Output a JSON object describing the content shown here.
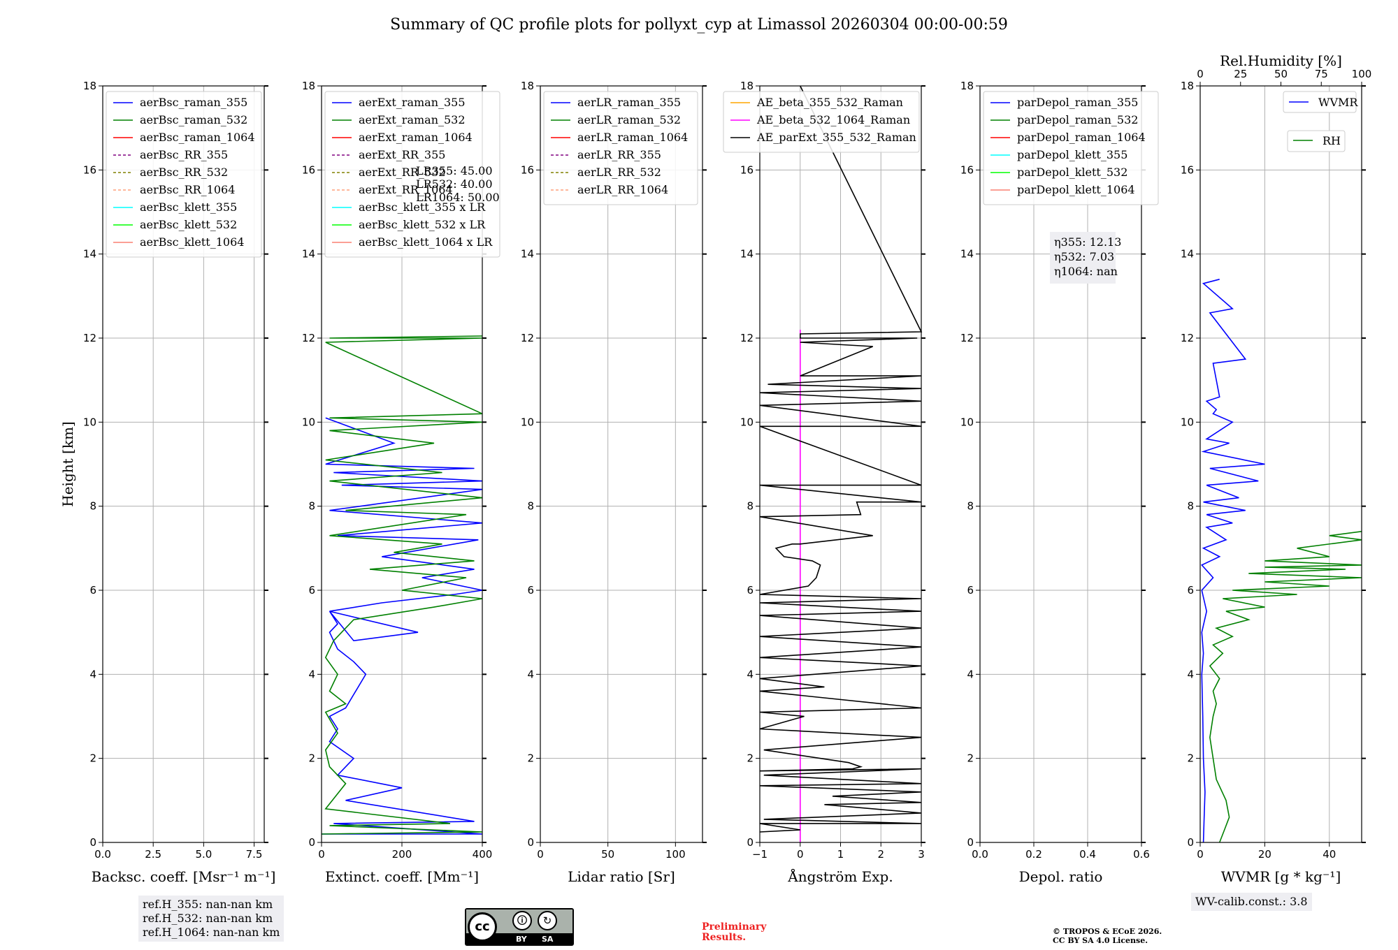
{
  "title": "Summary of QC profile plots for pollyxt_cyp at Limassol 20260304 00:00-00:59",
  "colors": {
    "blue": "#0000ff",
    "green": "#008000",
    "red": "#ff0000",
    "purple": "#800080",
    "olive": "#808000",
    "lightsalmon": "#ffa07a",
    "cyan": "#00ffff",
    "lime": "#00ff00",
    "salmon": "#fa8072",
    "orange": "#ffa500",
    "magenta": "#ff00ff",
    "black": "#000000"
  },
  "chart_data": [
    {
      "type": "line",
      "xlabel": "Backsc. coeff. [Msr⁻¹ m⁻¹]",
      "ylabel": "Height [km]",
      "xlim": [
        0,
        8
      ],
      "ylim": [
        0,
        18
      ],
      "xticks": [
        "0.0",
        "2.5",
        "5.0",
        "7.5"
      ],
      "yticks": [
        "0",
        "2",
        "4",
        "6",
        "8",
        "10",
        "12",
        "14",
        "16",
        "18"
      ],
      "legend": [
        "aerBsc_raman_355",
        "aerBsc_raman_532",
        "aerBsc_raman_1064",
        "aerBsc_RR_355",
        "aerBsc_RR_532",
        "aerBsc_RR_1064",
        "aerBsc_klett_355",
        "aerBsc_klett_532",
        "aerBsc_klett_1064"
      ],
      "series": []
    },
    {
      "type": "line",
      "xlabel": "Extinct. coeff. [Mm⁻¹]",
      "xlim": [
        0,
        400
      ],
      "ylim": [
        0,
        18
      ],
      "xticks": [
        "0",
        "200",
        "400"
      ],
      "yticks": [
        "0",
        "2",
        "4",
        "6",
        "8",
        "10",
        "12",
        "14",
        "16",
        "18"
      ],
      "legend": [
        "aerExt_raman_355",
        "aerExt_raman_532",
        "aerExt_raman_1064",
        "aerExt_RR_355",
        "aerExt_RR_532",
        "aerExt_RR_1064",
        "aerBsc_klett_355 x LR",
        "aerBsc_klett_532 x LR",
        "aerBsc_klett_1064 x LR"
      ],
      "annotations": [
        "LR355: 45.00",
        "LR532: 40.00",
        "LR1064: 50.00"
      ],
      "series": [
        {
          "name": "aerExt_raman_355",
          "x": [
            0,
            400,
            30,
            380,
            60,
            200,
            40,
            80,
            20,
            40,
            20,
            60,
            110,
            80,
            40,
            20,
            40,
            20,
            80,
            240,
            20,
            150,
            330,
            400,
            250,
            380,
            150,
            390,
            40,
            400,
            20,
            400,
            50,
            400,
            30,
            380,
            10,
            180,
            10
          ],
          "y": [
            0.2,
            0.2,
            0.45,
            0.5,
            1.0,
            1.3,
            1.6,
            2.0,
            2.4,
            2.7,
            3.0,
            3.2,
            4.0,
            4.3,
            4.6,
            5.0,
            5.2,
            5.5,
            4.8,
            5.0,
            5.5,
            5.7,
            5.9,
            6.0,
            6.3,
            6.5,
            6.8,
            7.2,
            7.3,
            7.6,
            7.9,
            8.4,
            8.5,
            8.6,
            8.8,
            8.9,
            9.0,
            9.5,
            10.1
          ]
        },
        {
          "name": "aerExt_raman_532",
          "x": [
            0,
            400,
            20,
            320,
            10,
            60,
            20,
            10,
            40,
            10,
            60,
            20,
            40,
            10,
            30,
            80,
            280,
            400,
            200,
            360,
            120,
            380,
            180,
            300,
            20,
            360,
            60,
            400,
            20,
            300,
            10,
            280,
            20,
            400,
            20,
            400,
            10,
            400,
            20,
            400
          ],
          "y": [
            0.2,
            0.25,
            0.4,
            0.45,
            0.8,
            1.4,
            1.8,
            2.2,
            2.6,
            3.1,
            3.3,
            3.6,
            4.0,
            4.4,
            4.8,
            5.3,
            5.6,
            5.8,
            6.0,
            6.3,
            6.5,
            6.7,
            6.9,
            7.1,
            7.3,
            7.8,
            7.9,
            8.2,
            8.6,
            8.8,
            9.1,
            9.5,
            9.8,
            10.0,
            10.1,
            10.2,
            11.9,
            12.0,
            12.0,
            12.05
          ]
        }
      ]
    },
    {
      "type": "line",
      "xlabel": "Lidar ratio [Sr]",
      "xlim": [
        0,
        120
      ],
      "ylim": [
        0,
        18
      ],
      "xticks": [
        "0",
        "50",
        "100"
      ],
      "yticks": [
        "0",
        "2",
        "4",
        "6",
        "8",
        "10",
        "12",
        "14",
        "16",
        "18"
      ],
      "legend": [
        "aerLR_raman_355",
        "aerLR_raman_532",
        "aerLR_raman_1064",
        "aerLR_RR_355",
        "aerLR_RR_532",
        "aerLR_RR_1064"
      ],
      "series": []
    },
    {
      "type": "line",
      "xlabel": "Ångström Exp.",
      "xlim": [
        -1,
        3
      ],
      "ylim": [
        0,
        18
      ],
      "xticks": [
        "−1",
        "0",
        "1",
        "2",
        "3"
      ],
      "yticks": [
        "0",
        "2",
        "4",
        "6",
        "8",
        "10",
        "12",
        "14",
        "16",
        "18"
      ],
      "legend": [
        "AE_beta_355_532_Raman",
        "AE_beta_532_1064_Raman",
        "AE_parExt_355_532_Raman"
      ],
      "series": [
        {
          "name": "AE_beta_532_1064_Raman",
          "x": [
            0,
            0
          ],
          "y": [
            0,
            12.2
          ]
        },
        {
          "name": "AE_parExt_355_532_Raman",
          "x": [
            -1,
            0,
            -1,
            3,
            -0.9,
            3,
            0.6,
            3,
            0.8,
            3,
            -1,
            3,
            -0.9,
            3,
            -1,
            1.3,
            1.5,
            1.2,
            -0.9,
            3,
            -1,
            0.1,
            -1,
            3,
            -1,
            0.6,
            -1,
            3,
            -1,
            3,
            -1,
            3,
            -1,
            3,
            -1,
            3,
            -1,
            0.2,
            0.4,
            0.5,
            0.3,
            -0.4,
            -0.6,
            -0.2,
            0,
            1.8,
            -1,
            1.5,
            1.4,
            3,
            -1,
            3,
            -1,
            3,
            -1,
            3,
            -1,
            3,
            -0.8,
            3,
            0,
            1.8,
            0,
            0,
            2.9,
            0,
            0,
            3,
            0
          ],
          "y": [
            0.25,
            0.3,
            0.45,
            0.45,
            0.55,
            0.7,
            0.9,
            0.95,
            1.1,
            1.2,
            1.35,
            1.4,
            1.6,
            1.75,
            1.7,
            1.75,
            1.8,
            1.9,
            2.2,
            2.5,
            2.7,
            3.0,
            3.1,
            3.2,
            3.6,
            3.7,
            3.9,
            4.2,
            4.4,
            4.65,
            4.9,
            5.1,
            5.4,
            5.5,
            5.7,
            5.8,
            5.9,
            6.1,
            6.3,
            6.6,
            6.7,
            6.8,
            7.0,
            7.1,
            7.1,
            7.3,
            7.75,
            7.8,
            8.1,
            8.1,
            8.5,
            8.5,
            9.9,
            9.9,
            10.4,
            10.5,
            10.7,
            10.8,
            10.9,
            11.1,
            11.1,
            11.8,
            11.9,
            11.9,
            12.0,
            12.0,
            12.1,
            12.15,
            18
          ]
        }
      ]
    },
    {
      "type": "line",
      "xlabel": "Depol. ratio",
      "xlim": [
        0,
        0.6
      ],
      "ylim": [
        0,
        18
      ],
      "xticks": [
        "0.0",
        "0.2",
        "0.4",
        "0.6"
      ],
      "yticks": [
        "0",
        "2",
        "4",
        "6",
        "8",
        "10",
        "12",
        "14",
        "16",
        "18"
      ],
      "legend": [
        "parDepol_raman_355",
        "parDepol_raman_532",
        "parDepol_raman_1064",
        "parDepol_klett_355",
        "parDepol_klett_532",
        "parDepol_klett_1064"
      ],
      "annotations": [
        "η355: 12.13",
        "η532: 7.03",
        "η1064: nan"
      ],
      "series": []
    },
    {
      "type": "line",
      "xlabel": "WVMR [g * kg⁻¹]",
      "x2label": "Rel.Humidity [%]",
      "xlim": [
        0,
        50
      ],
      "x2lim": [
        0,
        100
      ],
      "ylim": [
        0,
        18
      ],
      "xticks": [
        "0",
        "20",
        "40"
      ],
      "x2ticks": [
        "0",
        "25",
        "50",
        "75",
        "100"
      ],
      "yticks": [
        "0",
        "2",
        "4",
        "6",
        "8",
        "10",
        "12",
        "14",
        "16",
        "18"
      ],
      "legend": [
        "WVMR",
        "RH"
      ],
      "series": [
        {
          "name": "WVMR",
          "x": [
            1,
            1.2,
            1.5,
            1,
            0.8,
            0.5,
            1,
            0.5,
            2,
            0.5,
            4,
            0.5,
            6,
            1,
            8,
            2,
            10,
            2,
            14,
            1,
            12,
            2,
            18,
            3,
            20,
            1,
            9,
            2,
            10,
            4,
            5,
            2,
            6,
            4,
            14,
            3,
            10,
            1,
            6
          ],
          "y": [
            0,
            0.5,
            1.2,
            2.0,
            3.0,
            4.0,
            4.5,
            5.0,
            5.5,
            6.0,
            6.3,
            6.6,
            6.8,
            7.0,
            7.2,
            7.5,
            7.6,
            7.8,
            7.9,
            8.1,
            8.2,
            8.5,
            8.6,
            8.9,
            9.0,
            9.3,
            9.5,
            9.6,
            10.0,
            10.2,
            10.3,
            10.5,
            10.6,
            11.4,
            11.5,
            12.6,
            12.7,
            13.3,
            13.4
          ]
        },
        {
          "name": "RH",
          "x": [
            12,
            15,
            18,
            16,
            10,
            8,
            6,
            8,
            10,
            8,
            12,
            6,
            14,
            8,
            20,
            10,
            30,
            16,
            40,
            14,
            60,
            20,
            80,
            40,
            100,
            30,
            90,
            40,
            100,
            40,
            80,
            60,
            100,
            80,
            100
          ],
          "y": [
            0,
            0.3,
            0.6,
            1.0,
            1.5,
            2.0,
            2.5,
            3.0,
            3.3,
            3.6,
            3.9,
            4.2,
            4.5,
            4.7,
            4.9,
            5.1,
            5.3,
            5.5,
            5.6,
            5.8,
            5.9,
            6.0,
            6.1,
            6.2,
            6.3,
            6.4,
            6.5,
            6.55,
            6.6,
            6.7,
            6.8,
            7.0,
            7.2,
            7.3,
            7.4
          ]
        }
      ]
    }
  ],
  "notes": {
    "ref_h": [
      "ref.H_355: nan-nan km",
      "ref.H_532: nan-nan km",
      "ref.H_1064: nan-nan km"
    ],
    "wv_calib": "WV-calib.const.: 3.8",
    "preliminary": [
      "Preliminary",
      "Results."
    ],
    "copyright": [
      "© TROPOS & ECoE 2026.",
      "CC BY SA 4.0 License."
    ],
    "license_badge": {
      "cc": "cc",
      "by": "BY",
      "sa": "SA"
    }
  }
}
